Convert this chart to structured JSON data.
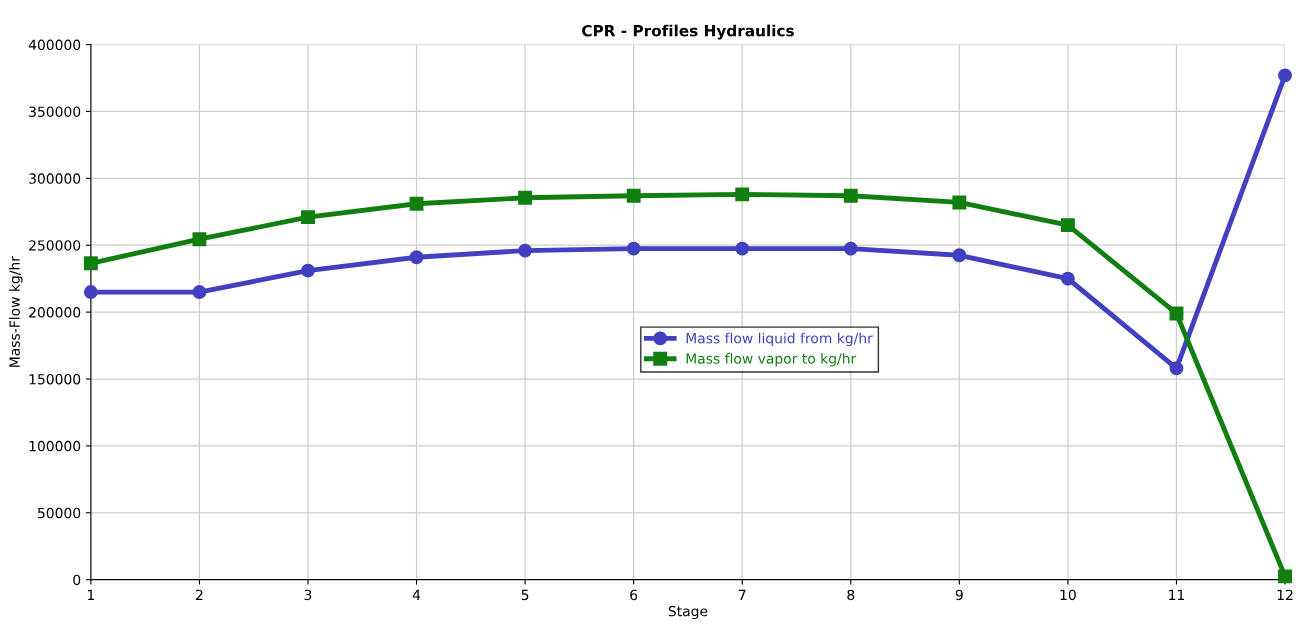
{
  "chart_data": {
    "type": "line",
    "title": "CPR - Profiles Hydraulics",
    "xlabel": "Stage",
    "ylabel": "Mass-Flow kg/hr",
    "x": [
      1,
      2,
      3,
      4,
      5,
      6,
      7,
      8,
      9,
      10,
      11,
      12
    ],
    "series": [
      {
        "name": "Mass flow liquid from kg/hr",
        "color": "#4040c0",
        "marker": "circle",
        "values": [
          215000,
          215000,
          231000,
          241000,
          246000,
          247500,
          247500,
          247500,
          242500,
          225000,
          158000,
          377000
        ]
      },
      {
        "name": "Mass flow vapor to kg/hr",
        "color": "#107f10",
        "marker": "square",
        "values": [
          236500,
          254500,
          271000,
          281000,
          285500,
          287000,
          288000,
          287000,
          282000,
          265000,
          199000,
          2500
        ]
      }
    ],
    "xlim": [
      1,
      12
    ],
    "xticks": [
      1,
      2,
      3,
      4,
      5,
      6,
      7,
      8,
      9,
      10,
      11,
      12
    ],
    "ylim": [
      0,
      400000
    ],
    "yticks": [
      0,
      50000,
      100000,
      150000,
      200000,
      250000,
      300000,
      350000,
      400000
    ],
    "grid": true,
    "legend": "center",
    "line_style": "solid"
  }
}
